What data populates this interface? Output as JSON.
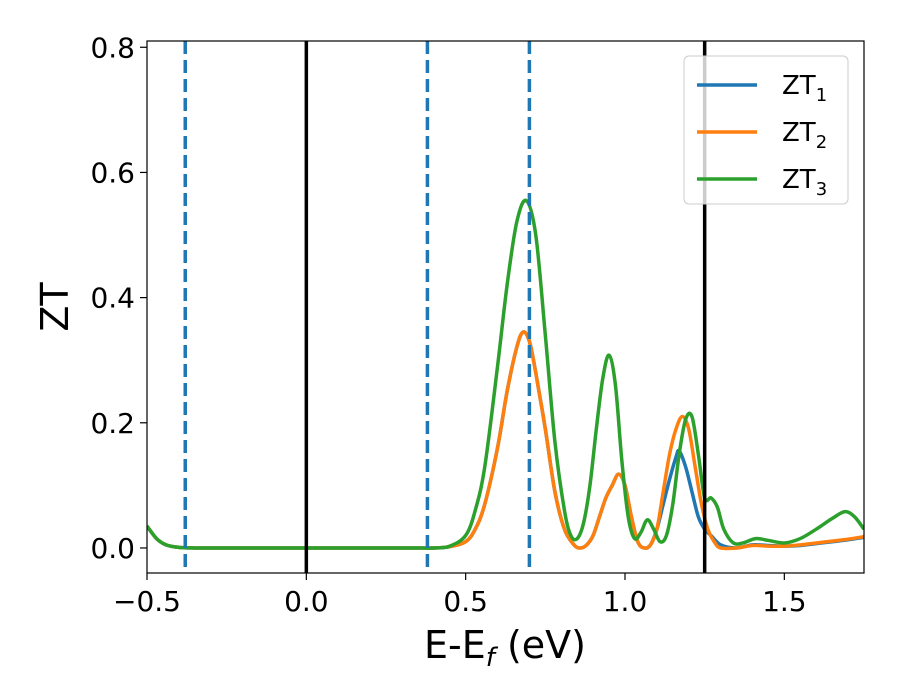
{
  "chart_data": {
    "type": "line",
    "xlabel_main": "E-E",
    "xlabel_sub": "f",
    "xlabel_unit": " (eV)",
    "ylabel": "ZT",
    "xlim": [
      -0.5,
      1.75
    ],
    "ylim": [
      -0.04,
      0.81
    ],
    "xticks": [
      -0.5,
      0.0,
      0.5,
      1.0,
      1.5
    ],
    "xtick_labels": [
      "−0.5",
      "0.0",
      "0.5",
      "1.0",
      "1.5"
    ],
    "yticks": [
      0.0,
      0.2,
      0.4,
      0.6,
      0.8
    ],
    "ytick_labels": [
      "0.0",
      "0.2",
      "0.4",
      "0.6",
      "0.8"
    ],
    "legend_position": "top-right",
    "vlines_solid": [
      0.0,
      1.25
    ],
    "vlines_dashed": [
      -0.38,
      0.38,
      0.7
    ],
    "vline_solid_color": "#000000",
    "vline_dashed_color": "#1f77b4",
    "series": [
      {
        "name": "ZT",
        "sub": "1",
        "color": "#1f77b4",
        "x": [
          -0.5,
          -0.47,
          -0.44,
          -0.4,
          -0.35,
          -0.3,
          0.0,
          0.3,
          0.4,
          0.45,
          0.5,
          0.53,
          0.56,
          0.6,
          0.63,
          0.66,
          0.68,
          0.7,
          0.72,
          0.75,
          0.78,
          0.81,
          0.84,
          0.86,
          0.88,
          0.9,
          0.92,
          0.94,
          0.96,
          0.98,
          1.0,
          1.02,
          1.04,
          1.06,
          1.08,
          1.1,
          1.12,
          1.14,
          1.16,
          1.17,
          1.19,
          1.21,
          1.23,
          1.25,
          1.27,
          1.3,
          1.35,
          1.4,
          1.45,
          1.5,
          1.55,
          1.6,
          1.65,
          1.7,
          1.75
        ],
        "y": [
          0.035,
          0.015,
          0.005,
          0.001,
          0.0,
          0.0,
          0.0,
          0.0,
          0.0,
          0.002,
          0.01,
          0.03,
          0.07,
          0.16,
          0.25,
          0.32,
          0.345,
          0.33,
          0.28,
          0.19,
          0.09,
          0.03,
          0.005,
          0.0,
          0.005,
          0.02,
          0.05,
          0.08,
          0.1,
          0.118,
          0.1,
          0.05,
          0.01,
          0.0,
          0.005,
          0.03,
          0.07,
          0.11,
          0.145,
          0.155,
          0.13,
          0.09,
          0.05,
          0.03,
          0.02,
          0.005,
          0.0,
          0.005,
          0.004,
          0.003,
          0.004,
          0.007,
          0.01,
          0.013,
          0.017
        ]
      },
      {
        "name": "ZT",
        "sub": "2",
        "color": "#ff7f0e",
        "x": [
          -0.5,
          -0.47,
          -0.44,
          -0.4,
          -0.35,
          -0.3,
          0.0,
          0.3,
          0.4,
          0.45,
          0.5,
          0.53,
          0.56,
          0.6,
          0.63,
          0.66,
          0.68,
          0.7,
          0.72,
          0.75,
          0.78,
          0.81,
          0.84,
          0.86,
          0.88,
          0.9,
          0.92,
          0.94,
          0.96,
          0.98,
          1.0,
          1.02,
          1.04,
          1.06,
          1.08,
          1.1,
          1.12,
          1.14,
          1.16,
          1.18,
          1.2,
          1.22,
          1.24,
          1.26,
          1.28,
          1.3,
          1.35,
          1.4,
          1.45,
          1.5,
          1.55,
          1.6,
          1.65,
          1.7,
          1.75
        ],
        "y": [
          0.035,
          0.015,
          0.005,
          0.001,
          0.0,
          0.0,
          0.0,
          0.0,
          0.0,
          0.002,
          0.01,
          0.03,
          0.07,
          0.16,
          0.25,
          0.32,
          0.345,
          0.33,
          0.28,
          0.19,
          0.09,
          0.03,
          0.005,
          0.0,
          0.005,
          0.02,
          0.05,
          0.08,
          0.1,
          0.118,
          0.1,
          0.05,
          0.01,
          0.0,
          0.005,
          0.03,
          0.09,
          0.15,
          0.19,
          0.21,
          0.19,
          0.13,
          0.07,
          0.03,
          0.01,
          0.0,
          0.0,
          0.004,
          0.003,
          0.003,
          0.005,
          0.008,
          0.011,
          0.014,
          0.018
        ]
      },
      {
        "name": "ZT",
        "sub": "3",
        "color": "#2ca02c",
        "x": [
          -0.5,
          -0.47,
          -0.44,
          -0.4,
          -0.35,
          -0.3,
          0.0,
          0.3,
          0.4,
          0.45,
          0.5,
          0.53,
          0.56,
          0.6,
          0.63,
          0.66,
          0.69,
          0.72,
          0.75,
          0.78,
          0.81,
          0.83,
          0.85,
          0.87,
          0.89,
          0.91,
          0.93,
          0.95,
          0.97,
          0.99,
          1.01,
          1.03,
          1.05,
          1.07,
          1.09,
          1.11,
          1.13,
          1.15,
          1.17,
          1.19,
          1.21,
          1.23,
          1.25,
          1.27,
          1.29,
          1.31,
          1.34,
          1.37,
          1.41,
          1.45,
          1.5,
          1.55,
          1.6,
          1.65,
          1.69,
          1.72,
          1.75
        ],
        "y": [
          0.035,
          0.015,
          0.005,
          0.001,
          0.0,
          0.0,
          0.0,
          0.0,
          0.0,
          0.003,
          0.02,
          0.06,
          0.13,
          0.29,
          0.42,
          0.52,
          0.555,
          0.5,
          0.34,
          0.17,
          0.06,
          0.02,
          0.015,
          0.04,
          0.1,
          0.19,
          0.27,
          0.308,
          0.26,
          0.14,
          0.05,
          0.015,
          0.025,
          0.045,
          0.03,
          0.01,
          0.02,
          0.07,
          0.15,
          0.205,
          0.21,
          0.15,
          0.08,
          0.08,
          0.065,
          0.03,
          0.008,
          0.008,
          0.015,
          0.012,
          0.008,
          0.015,
          0.03,
          0.047,
          0.058,
          0.05,
          0.03
        ]
      }
    ]
  }
}
